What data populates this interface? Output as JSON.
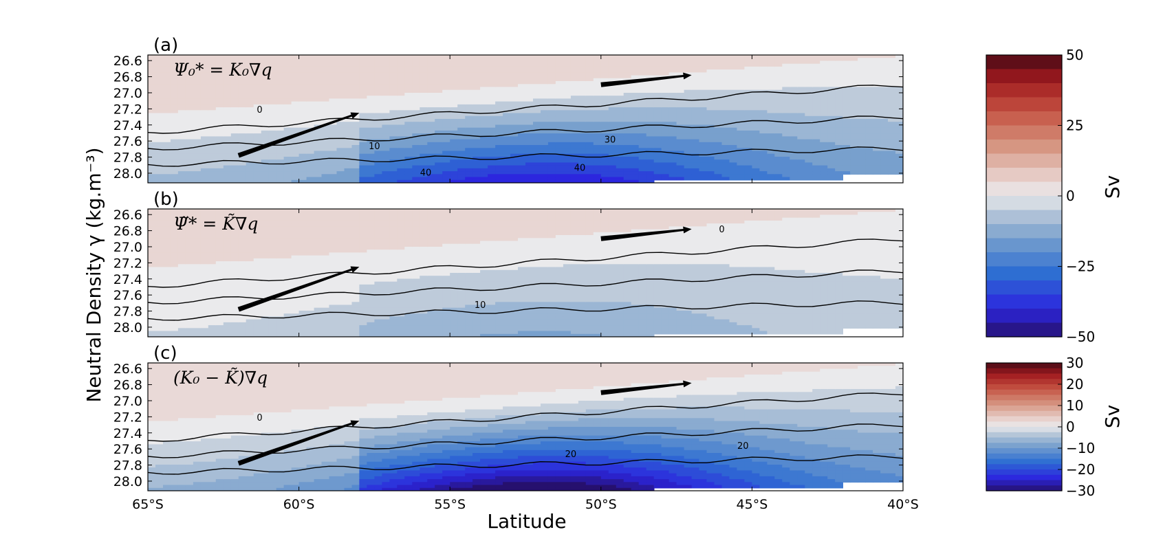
{
  "chart_data": [
    {
      "type": "heatmap",
      "panel_label": "(a)",
      "equation": "Ψ₀* = K₀∇q",
      "xlabel": "Latitude",
      "ylabel": "Neutral Density γ (kg.m⁻³)",
      "x_ticks": [
        "65°S",
        "60°S",
        "55°S",
        "50°S",
        "45°S",
        "40°S"
      ],
      "x_tick_values": [
        -65,
        -60,
        -55,
        -50,
        -45,
        -40
      ],
      "y_ticks": [
        "26.6",
        "26.8",
        "27.0",
        "27.2",
        "27.4",
        "27.6",
        "27.8",
        "28.0"
      ],
      "y_tick_values": [
        26.6,
        26.8,
        27.0,
        27.2,
        27.4,
        27.6,
        27.8,
        28.0
      ],
      "xlim": [
        -65,
        -40
      ],
      "ylim": [
        28.12,
        26.53
      ],
      "contour_labels": [
        {
          "text": "0",
          "lat": -61.3,
          "gamma": 27.25
        },
        {
          "text": "10",
          "lat": -57.5,
          "gamma": 27.7
        },
        {
          "text": "30",
          "lat": -49.7,
          "gamma": 27.62
        },
        {
          "text": "40",
          "lat": -55.8,
          "gamma": 28.03
        },
        {
          "text": "40",
          "lat": -50.7,
          "gamma": 27.97
        }
      ],
      "max_magnitude": 45,
      "arrows": [
        {
          "from": [
            -62,
            27.78
          ],
          "to": [
            -58,
            27.25
          ]
        },
        {
          "from": [
            -50,
            26.9
          ],
          "to": [
            -47,
            26.78
          ]
        }
      ]
    },
    {
      "type": "heatmap",
      "panel_label": "(b)",
      "equation": "Ψ̃* = K̃∇q",
      "xlabel": "Latitude",
      "ylabel": "Neutral Density γ (kg.m⁻³)",
      "x_ticks": [
        "65°S",
        "60°S",
        "55°S",
        "50°S",
        "45°S",
        "40°S"
      ],
      "x_tick_values": [
        -65,
        -60,
        -55,
        -50,
        -45,
        -40
      ],
      "y_ticks": [
        "26.6",
        "26.8",
        "27.0",
        "27.2",
        "27.4",
        "27.6",
        "27.8",
        "28.0"
      ],
      "y_tick_values": [
        26.6,
        26.8,
        27.0,
        27.2,
        27.4,
        27.6,
        27.8,
        28.0
      ],
      "xlim": [
        -65,
        -40
      ],
      "ylim": [
        28.12,
        26.53
      ],
      "contour_labels": [
        {
          "text": "0",
          "lat": -46,
          "gamma": 26.82
        },
        {
          "text": "10",
          "lat": -54,
          "gamma": 27.76
        }
      ],
      "max_magnitude": 14,
      "arrows": [
        {
          "from": [
            -62,
            27.78
          ],
          "to": [
            -58,
            27.25
          ]
        },
        {
          "from": [
            -50,
            26.9
          ],
          "to": [
            -47,
            26.78
          ]
        }
      ]
    },
    {
      "type": "heatmap",
      "panel_label": "(c)",
      "equation": "(K₀ − K̃)∇q",
      "xlabel": "Latitude",
      "ylabel": "Neutral Density γ (kg.m⁻³)",
      "x_ticks": [
        "65°S",
        "60°S",
        "55°S",
        "50°S",
        "45°S",
        "40°S"
      ],
      "x_tick_values": [
        -65,
        -60,
        -55,
        -50,
        -45,
        -40
      ],
      "y_ticks": [
        "26.6",
        "26.8",
        "27.0",
        "27.2",
        "27.4",
        "27.6",
        "27.8",
        "28.0"
      ],
      "y_tick_values": [
        26.6,
        26.8,
        27.0,
        27.2,
        27.4,
        27.6,
        27.8,
        28.0
      ],
      "xlim": [
        -65,
        -40
      ],
      "ylim": [
        28.12,
        26.53
      ],
      "contour_labels": [
        {
          "text": "0",
          "lat": -61.3,
          "gamma": 27.25
        },
        {
          "text": "20",
          "lat": -51,
          "gamma": 27.7
        },
        {
          "text": "20",
          "lat": -45.3,
          "gamma": 27.6
        }
      ],
      "max_magnitude": 34,
      "arrows": [
        {
          "from": [
            -62,
            27.78
          ],
          "to": [
            -58,
            27.25
          ]
        },
        {
          "from": [
            -50,
            26.9
          ],
          "to": [
            -47,
            26.78
          ]
        }
      ]
    }
  ],
  "colorbars": [
    {
      "label": "Sv",
      "tick_labels": [
        "50",
        "25",
        "0",
        "−25",
        "−50"
      ],
      "tick_values": [
        50,
        25,
        0,
        -25,
        -50
      ],
      "range": [
        -50,
        50
      ],
      "levels": 20,
      "applies_to": [
        "(a)",
        "(b)"
      ]
    },
    {
      "label": "Sv",
      "tick_labels": [
        "30",
        "20",
        "10",
        "0",
        "−10",
        "−20",
        "−30"
      ],
      "tick_values": [
        30,
        20,
        10,
        0,
        -10,
        -20,
        -30
      ],
      "range": [
        -30,
        30
      ],
      "levels": 24,
      "applies_to": [
        "(c)"
      ]
    }
  ]
}
